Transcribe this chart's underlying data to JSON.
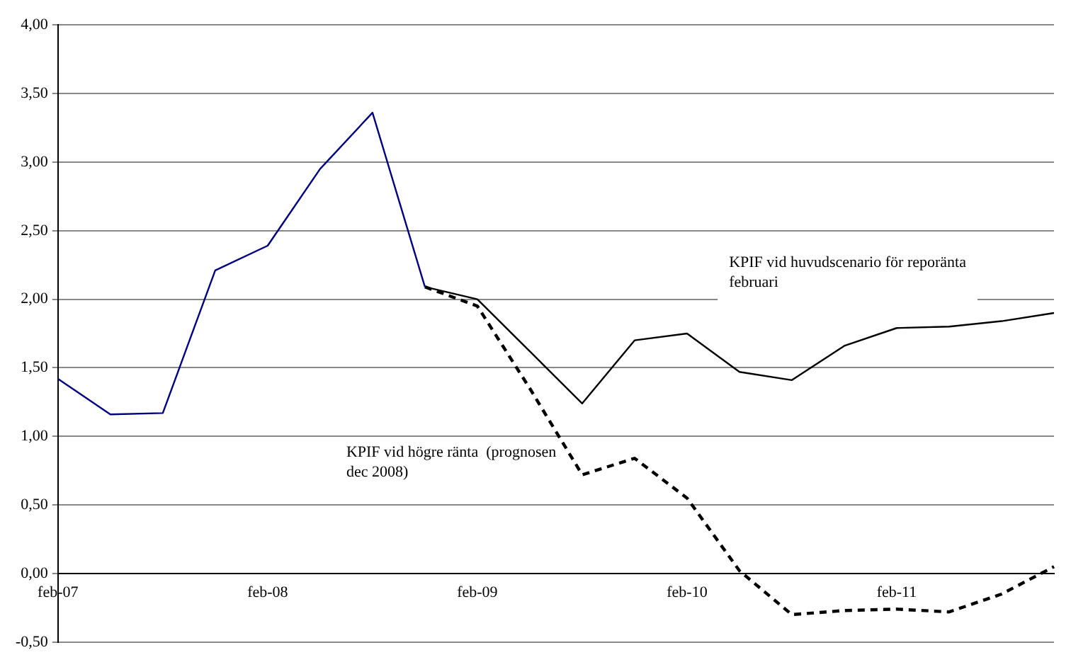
{
  "chart_data": {
    "type": "line",
    "categories": [
      "feb-07",
      null,
      null,
      null,
      "feb-08",
      null,
      null,
      null,
      "feb-09",
      null,
      null,
      null,
      "feb-10",
      null,
      null,
      null,
      "feb-11",
      null,
      null,
      null
    ],
    "series": [
      {
        "color": "#000080",
        "values": [
          1.42,
          1.16,
          1.17,
          2.21,
          2.39,
          2.95,
          3.36,
          2.09,
          null,
          null,
          null,
          null,
          null,
          null,
          null,
          null,
          null,
          null,
          null,
          null
        ]
      },
      {
        "name": "KPIF vid huvudscenario för reporänta februari",
        "color": "#000000",
        "line_style": "solid",
        "values": [
          null,
          null,
          null,
          null,
          null,
          null,
          null,
          2.09,
          2.0,
          1.62,
          1.24,
          1.7,
          1.75,
          1.47,
          1.41,
          1.66,
          1.79,
          1.8,
          1.84,
          1.9
        ]
      },
      {
        "name": "KPIF vid högre ränta  (prognosen dec 2008)",
        "color": "#000000",
        "line_style": "dashed",
        "values": [
          null,
          null,
          null,
          null,
          null,
          null,
          null,
          2.09,
          1.95,
          1.35,
          0.72,
          0.84,
          0.55,
          0.02,
          -0.3,
          -0.27,
          -0.26,
          -0.28,
          -0.15,
          0.05
        ]
      }
    ],
    "ylim": [
      -0.5,
      4.0
    ],
    "yticks": [
      {
        "value": -0.5,
        "label": "-0,50"
      },
      {
        "value": 0,
        "label": "0,00"
      },
      {
        "value": 0.5,
        "label": "0,50"
      },
      {
        "value": 1,
        "label": "1,00"
      },
      {
        "value": 1.5,
        "label": "1,50"
      },
      {
        "value": 2,
        "label": "2,00"
      },
      {
        "value": 2.5,
        "label": "2,50"
      },
      {
        "value": 3,
        "label": "3,00"
      },
      {
        "value": 3.5,
        "label": "3,50"
      },
      {
        "value": 4,
        "label": "4,00"
      }
    ],
    "grid": "y",
    "legend": false,
    "marker": "none"
  }
}
